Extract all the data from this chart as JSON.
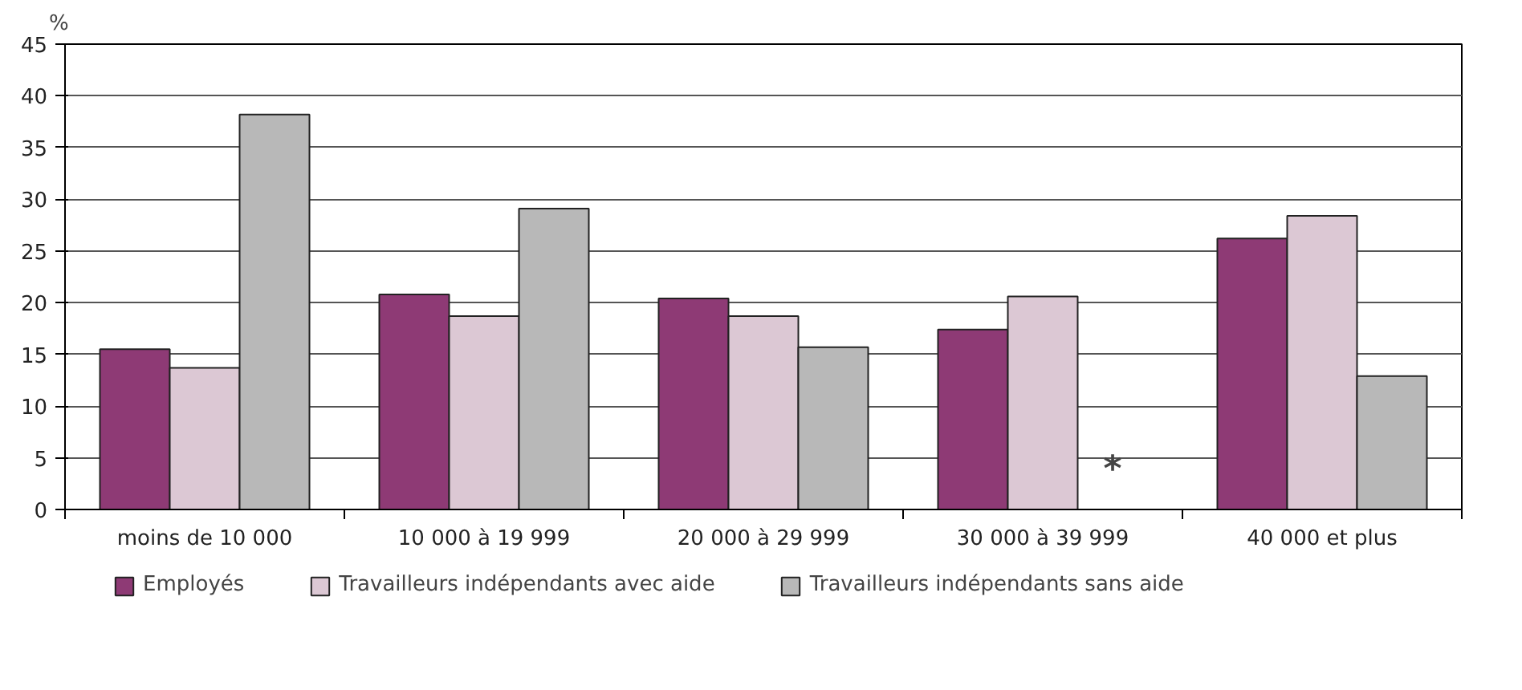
{
  "chart_data": {
    "type": "bar",
    "ylabel": "%",
    "categories": [
      "moins de 10 000",
      "10 000 à 19 999",
      "20 000 à 29 999",
      "30 000 à 39 999",
      "40 000 et plus"
    ],
    "series": [
      {
        "name": "Employés",
        "color": "#8e3a75",
        "values": [
          15.5,
          20.8,
          20.4,
          17.4,
          26.2
        ]
      },
      {
        "name": "Travailleurs indépendants avec aide",
        "color": "#dcc8d4",
        "values": [
          13.7,
          18.7,
          18.7,
          20.6,
          28.4
        ]
      },
      {
        "name": "Travailleurs indépendants sans aide",
        "color": "#b8b8b8",
        "values": [
          38.2,
          29.1,
          15.7,
          null,
          12.9
        ]
      }
    ],
    "ylim": [
      0,
      45
    ],
    "yticks": [
      0,
      5,
      10,
      15,
      20,
      25,
      30,
      35,
      40,
      45
    ],
    "grid": "y",
    "legend": "bottom",
    "annotations": [
      "*"
    ]
  }
}
